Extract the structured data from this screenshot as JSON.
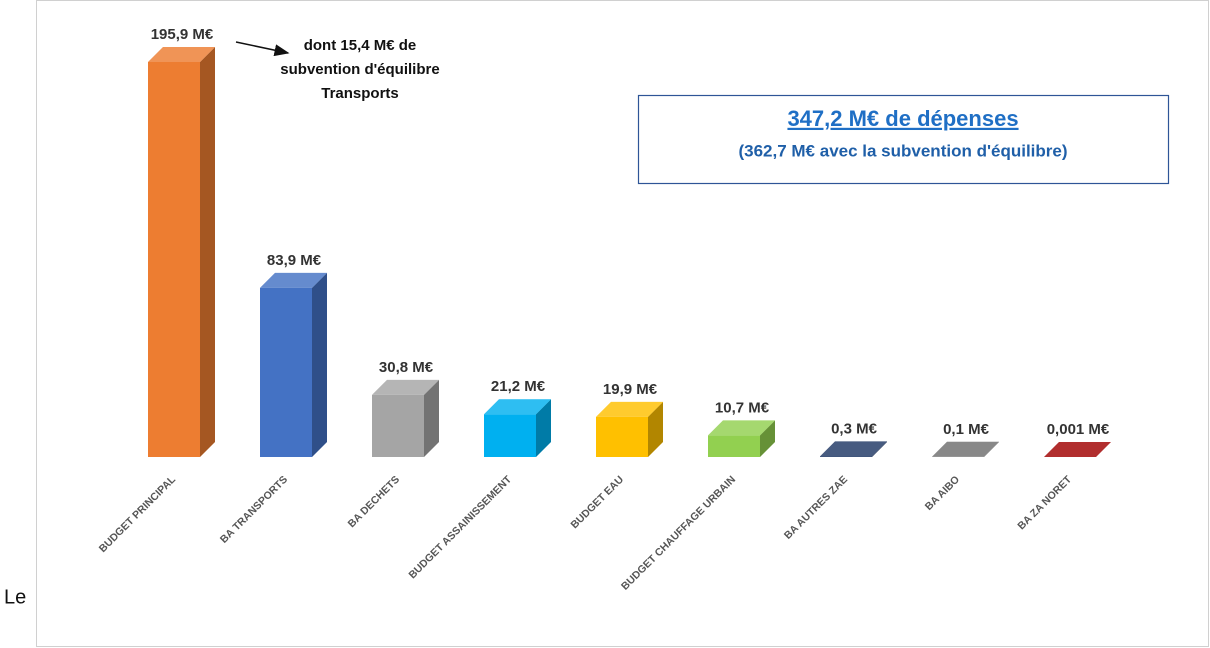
{
  "page_text": "Le",
  "chart_data": {
    "type": "bar3d",
    "categories": [
      "BUDGET PRINCIPAL",
      "BA TRANSPORTS",
      "BA DECHETS",
      "BUDGET ASSAINISSEMENT",
      "BUDGET EAU",
      "BUDGET CHAUFFAGE URBAIN",
      "BA AUTRES ZAE",
      "BA AIBO",
      "BA ZA NORET"
    ],
    "values": [
      195.9,
      83.9,
      30.8,
      21.2,
      19.9,
      10.7,
      0.3,
      0.1,
      0.001
    ],
    "value_labels": [
      "195,9 M€",
      "83,9 M€",
      "30,8 M€",
      "21,2 M€",
      "19,9 M€",
      "10,7 M€",
      "0,3 M€",
      "0,1 M€",
      "0,001 M€"
    ],
    "colors": [
      "#ED7D31",
      "#4472C4",
      "#A5A5A5",
      "#00B0F0",
      "#FFC000",
      "#92D050",
      "#1F3864",
      "#6E6E6E",
      "#A00000"
    ],
    "annotation": [
      "dont 15,4 M€ de",
      "subvention d'équilibre",
      "Transports"
    ],
    "summary": {
      "total": "347,2 M€ de dépenses",
      "detail": "(362,7 M€ avec la subvention d'équilibre)"
    }
  }
}
